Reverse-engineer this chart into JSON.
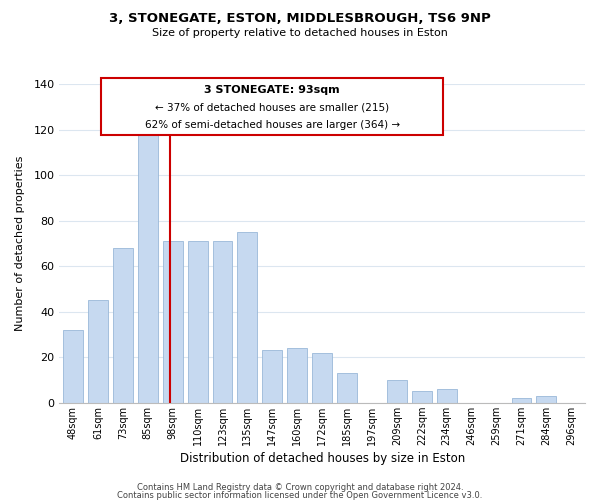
{
  "title1": "3, STONEGATE, ESTON, MIDDLESBROUGH, TS6 9NP",
  "title2": "Size of property relative to detached houses in Eston",
  "xlabel": "Distribution of detached houses by size in Eston",
  "ylabel": "Number of detached properties",
  "bar_labels": [
    "48sqm",
    "61sqm",
    "73sqm",
    "85sqm",
    "98sqm",
    "110sqm",
    "123sqm",
    "135sqm",
    "147sqm",
    "160sqm",
    "172sqm",
    "185sqm",
    "197sqm",
    "209sqm",
    "222sqm",
    "234sqm",
    "246sqm",
    "259sqm",
    "271sqm",
    "284sqm",
    "296sqm"
  ],
  "bar_values": [
    32,
    45,
    68,
    118,
    71,
    71,
    71,
    75,
    23,
    24,
    22,
    13,
    0,
    10,
    5,
    6,
    0,
    0,
    2,
    3,
    0
  ],
  "bar_color": "#c6d9f0",
  "bar_edge_color": "#9ab8d8",
  "vline_index": 4,
  "vline_color": "#cc0000",
  "ylim": [
    0,
    140
  ],
  "yticks": [
    0,
    20,
    40,
    60,
    80,
    100,
    120,
    140
  ],
  "annotation_title": "3 STONEGATE: 93sqm",
  "annotation_line1": "← 37% of detached houses are smaller (215)",
  "annotation_line2": "62% of semi-detached houses are larger (364) →",
  "annotation_box_color": "#ffffff",
  "annotation_box_edge": "#cc0000",
  "footer1": "Contains HM Land Registry data © Crown copyright and database right 2024.",
  "footer2": "Contains public sector information licensed under the Open Government Licence v3.0.",
  "background_color": "#ffffff",
  "grid_color": "#dce6f0"
}
